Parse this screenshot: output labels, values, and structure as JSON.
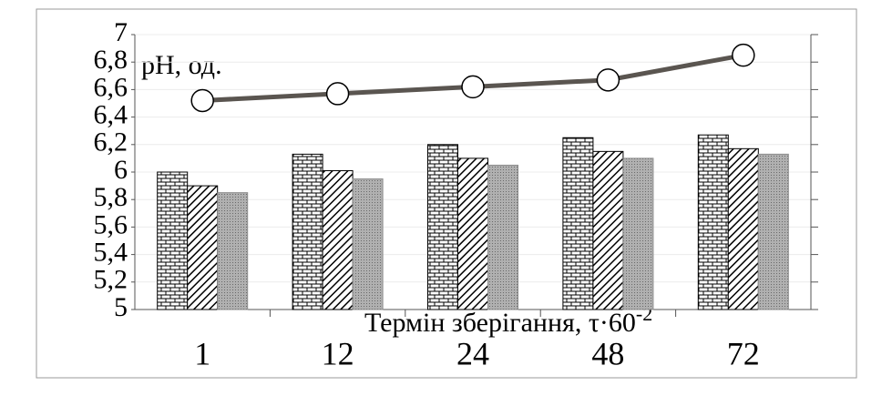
{
  "chart_data": {
    "type": "bar",
    "annotation": "pH, од.",
    "xlabel": "Термін зберігання, τ·60",
    "xlabel_sup": "-2",
    "categories": [
      "1",
      "12",
      "24",
      "48",
      "72"
    ],
    "series": [
      {
        "type": "bar",
        "pattern": "brick",
        "color": "#000000",
        "values": [
          6.0,
          6.13,
          6.2,
          6.25,
          6.27
        ]
      },
      {
        "type": "bar",
        "pattern": "hatch",
        "color": "#000000",
        "values": [
          5.9,
          6.01,
          6.1,
          6.15,
          6.17
        ]
      },
      {
        "type": "bar",
        "pattern": "dots",
        "color": "#8c8c8c",
        "values": [
          5.85,
          5.95,
          6.05,
          6.1,
          6.13
        ]
      },
      {
        "type": "line",
        "color": "#5a5550",
        "values": [
          6.52,
          6.57,
          6.62,
          6.67,
          6.85
        ]
      }
    ],
    "ylim": [
      5,
      7
    ],
    "yticks": [
      5,
      {
        "value": 5.2,
        "label": "5,2"
      },
      {
        "value": 5.4,
        "label": "5,4"
      },
      {
        "value": 5.6,
        "label": "5,6"
      },
      {
        "value": 5.8,
        "label": "5,8"
      },
      6,
      {
        "value": 6.2,
        "label": "6,2"
      },
      {
        "value": 6.4,
        "label": "6,4"
      },
      {
        "value": 6.6,
        "label": "6,6"
      },
      {
        "value": 6.8,
        "label": "6,8"
      },
      7
    ],
    "grid": true
  }
}
